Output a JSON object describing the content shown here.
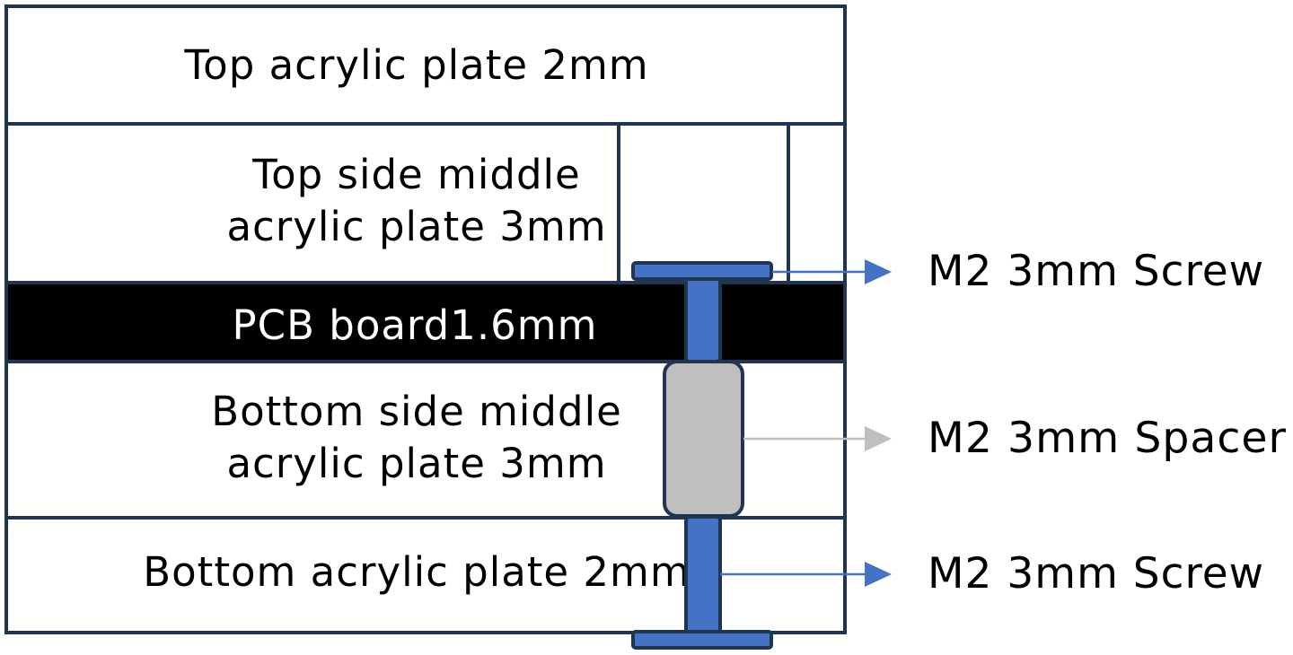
{
  "diagram": {
    "colors": {
      "outline": "#1f3550",
      "pcb": "#000000",
      "screw": "#4472c4",
      "spacer": "#bfbfbf",
      "spacer_arrow": "#bfbfbf"
    },
    "layers": {
      "top_plate": "Top acrylic plate 2mm",
      "top_middle_line1": "Top side middle",
      "top_middle_line2": "acrylic plate 3mm",
      "pcb": "PCB board1.6mm",
      "bottom_middle_line1": "Bottom side middle",
      "bottom_middle_line2": "acrylic plate 3mm",
      "bottom_plate": "Bottom acrylic plate 2mm"
    },
    "callouts": {
      "top_screw": "M2 3mm Screw",
      "spacer": "M2 3mm Spacer",
      "bottom_screw": "M2 3mm Screw"
    }
  }
}
